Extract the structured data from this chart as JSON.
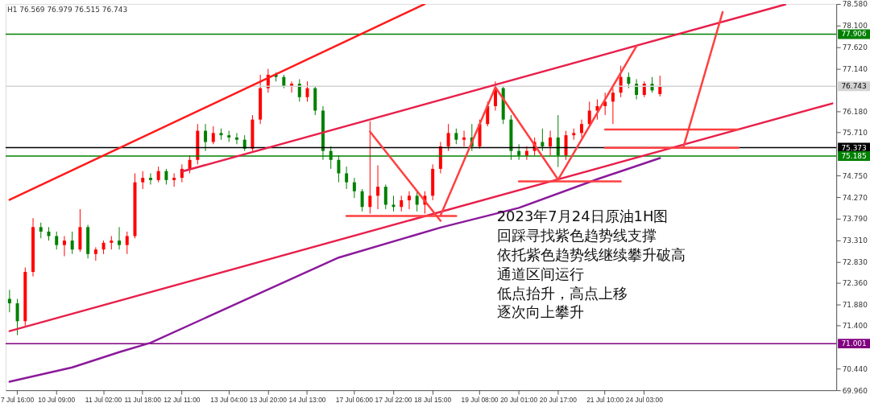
{
  "chart_data": {
    "type": "candlestick",
    "title": "H1  76.569 76.979 76.515 76.743",
    "categories": [
      null,
      "7 Jul 16:00",
      null,
      null,
      null,
      null,
      "10 Jul 09:00",
      null,
      null,
      null,
      null,
      null,
      "11 Jul 02:00",
      null,
      null,
      null,
      null,
      "11 Jul 18:00",
      null,
      null,
      null,
      null,
      "12 Jul 11:00",
      null,
      null,
      null,
      null,
      null,
      "13 Jul 04:00",
      null,
      null,
      null,
      null,
      "13 Jul 20:00",
      null,
      null,
      null,
      null,
      "14 Jul 13:00",
      null,
      null,
      null,
      null,
      null,
      "17 Jul 06:00",
      null,
      null,
      null,
      null,
      "17 Jul 22:00",
      null,
      null,
      null,
      null,
      "18 Jul 15:00",
      null,
      null,
      null,
      null,
      null,
      "19 Jul 08:00",
      null,
      null,
      null,
      null,
      "20 Jul 01:00",
      null,
      null,
      null,
      null,
      "20 Jul 17:00",
      null,
      null,
      null,
      null,
      null,
      "21 Jul 10:00",
      null,
      null,
      null,
      null,
      "24 Jul 03:00",
      null,
      null,
      null,
      null,
      null,
      null,
      null,
      null,
      null,
      null,
      null,
      null,
      null,
      null,
      null,
      null,
      null,
      null,
      null,
      null,
      null,
      null,
      null,
      null
    ],
    "ylim": [
      69.96,
      78.58
    ],
    "yticks": [
      {
        "value": 69.96,
        "label": "69.960"
      },
      {
        "value": 70.44,
        "label": "70.440"
      },
      {
        "value": 71.4,
        "label": "71.400"
      },
      {
        "value": 71.88,
        "label": "71.880"
      },
      {
        "value": 72.36,
        "label": "72.360"
      },
      {
        "value": 72.83,
        "label": "72.830"
      },
      {
        "value": 73.31,
        "label": "73.310"
      },
      {
        "value": 73.79,
        "label": "73.790"
      },
      {
        "value": 74.27,
        "label": "74.270"
      },
      {
        "value": 74.75,
        "label": "74.750"
      },
      {
        "value": 75.71,
        "label": "75.710"
      },
      {
        "value": 76.18,
        "label": "76.180"
      },
      {
        "value": 77.14,
        "label": "77.140"
      },
      {
        "value": 77.62,
        "label": "77.620"
      },
      {
        "value": 78.1,
        "label": "78.100"
      },
      {
        "value": 78.58,
        "label": "78.580"
      }
    ],
    "ohlc": [
      [
        72.0,
        72.2,
        71.7,
        71.9
      ],
      [
        71.9,
        72.0,
        71.19,
        71.5
      ],
      [
        71.5,
        72.7,
        71.4,
        72.6
      ],
      [
        72.6,
        73.8,
        72.5,
        73.6
      ],
      [
        73.6,
        73.7,
        73.35,
        73.5
      ],
      [
        73.5,
        73.6,
        73.3,
        73.4
      ],
      [
        73.4,
        73.5,
        73.1,
        73.2
      ],
      [
        73.2,
        73.4,
        72.95,
        73.3
      ],
      [
        73.3,
        73.5,
        73.0,
        73.1
      ],
      [
        73.1,
        74.0,
        73.05,
        73.6
      ],
      [
        73.6,
        73.65,
        72.9,
        73.0
      ],
      [
        73.0,
        73.15,
        72.85,
        73.1
      ],
      [
        73.1,
        73.3,
        73.0,
        73.25
      ],
      [
        73.25,
        73.4,
        73.1,
        73.3
      ],
      [
        73.3,
        73.6,
        73.1,
        73.2
      ],
      [
        73.2,
        73.5,
        73.0,
        73.4
      ],
      [
        73.4,
        74.8,
        73.35,
        74.6
      ],
      [
        74.6,
        74.85,
        74.45,
        74.7
      ],
      [
        74.7,
        74.8,
        74.55,
        74.65
      ],
      [
        74.65,
        74.95,
        74.6,
        74.85
      ],
      [
        74.85,
        74.9,
        74.55,
        74.65
      ],
      [
        74.65,
        74.8,
        74.5,
        74.7
      ],
      [
        74.7,
        75.0,
        74.6,
        74.9
      ],
      [
        74.9,
        75.2,
        74.8,
        75.1
      ],
      [
        75.1,
        75.9,
        75.0,
        75.75
      ],
      [
        75.75,
        75.9,
        75.3,
        75.5
      ],
      [
        75.5,
        75.85,
        75.45,
        75.7
      ],
      [
        75.7,
        75.8,
        75.55,
        75.65
      ],
      [
        75.65,
        75.75,
        75.5,
        75.6
      ],
      [
        75.6,
        75.7,
        75.45,
        75.55
      ],
      [
        75.55,
        75.65,
        75.3,
        75.35
      ],
      [
        75.35,
        76.1,
        75.3,
        76.0
      ],
      [
        76.0,
        77.0,
        75.9,
        76.7
      ],
      [
        76.7,
        77.13,
        76.6,
        77.0
      ],
      [
        77.0,
        77.05,
        76.85,
        76.95
      ],
      [
        76.95,
        77.0,
        76.7,
        76.75
      ],
      [
        76.75,
        76.85,
        76.6,
        76.8
      ],
      [
        76.8,
        76.9,
        76.4,
        76.5
      ],
      [
        76.5,
        76.85,
        76.4,
        76.7
      ],
      [
        76.7,
        76.75,
        76.1,
        76.2
      ],
      [
        76.2,
        76.3,
        75.1,
        75.3
      ],
      [
        75.3,
        75.4,
        74.9,
        75.1
      ],
      [
        75.1,
        75.2,
        74.6,
        74.8
      ],
      [
        74.8,
        74.95,
        74.45,
        74.6
      ],
      [
        74.6,
        74.7,
        74.25,
        74.4
      ],
      [
        74.4,
        74.45,
        73.95,
        74.05
      ],
      [
        74.05,
        75.96,
        73.9,
        74.3
      ],
      [
        74.3,
        74.98,
        74.0,
        74.5
      ],
      [
        74.5,
        74.55,
        74.0,
        74.1
      ],
      [
        74.1,
        74.3,
        73.95,
        74.05
      ],
      [
        74.05,
        74.3,
        73.95,
        74.2
      ],
      [
        74.2,
        74.4,
        74.0,
        74.3
      ],
      [
        74.3,
        74.4,
        73.95,
        74.1
      ],
      [
        74.1,
        74.4,
        73.9,
        74.3
      ],
      [
        74.3,
        75.0,
        74.2,
        74.9
      ],
      [
        74.9,
        75.5,
        74.8,
        75.4
      ],
      [
        75.4,
        75.9,
        75.3,
        75.7
      ],
      [
        75.7,
        75.8,
        75.45,
        75.55
      ],
      [
        75.55,
        75.75,
        75.4,
        75.6
      ],
      [
        75.6,
        75.9,
        75.3,
        75.4
      ],
      [
        75.4,
        76.0,
        75.35,
        75.9
      ],
      [
        75.9,
        76.4,
        75.85,
        76.3
      ],
      [
        76.3,
        76.85,
        76.2,
        76.7
      ],
      [
        76.7,
        76.75,
        75.9,
        76.0
      ],
      [
        76.0,
        76.1,
        75.1,
        75.3
      ],
      [
        75.3,
        75.45,
        75.1,
        75.2
      ],
      [
        75.2,
        75.4,
        75.1,
        75.3
      ],
      [
        75.3,
        75.6,
        75.2,
        75.5
      ],
      [
        75.5,
        75.8,
        75.3,
        75.4
      ],
      [
        75.4,
        75.75,
        75.2,
        75.6
      ],
      [
        75.6,
        76.1,
        74.94,
        75.2
      ],
      [
        75.2,
        75.75,
        75.1,
        75.65
      ],
      [
        75.65,
        75.8,
        75.55,
        75.7
      ],
      [
        75.7,
        76.0,
        75.6,
        75.9
      ],
      [
        75.9,
        76.4,
        75.85,
        76.2
      ],
      [
        76.2,
        76.45,
        76.0,
        76.3
      ],
      [
        76.3,
        76.6,
        76.1,
        76.4
      ],
      [
        76.4,
        76.7,
        75.9,
        76.6
      ],
      [
        76.6,
        77.2,
        76.5,
        76.95
      ],
      [
        76.95,
        77.05,
        76.7,
        76.8
      ],
      [
        76.8,
        76.9,
        76.45,
        76.55
      ],
      [
        76.55,
        76.85,
        76.5,
        76.8
      ],
      [
        76.8,
        76.95,
        76.6,
        76.65
      ],
      [
        76.569,
        76.979,
        76.515,
        76.743
      ],
      null,
      null,
      null,
      null,
      null,
      null,
      null,
      null,
      null,
      null,
      null,
      null,
      null,
      null,
      null,
      null,
      null,
      null,
      null,
      null,
      null,
      null
    ],
    "colors": [
      "#008000",
      "#008000",
      "#ff0000",
      "#ff0000",
      "#008000",
      "#008000",
      "#008000",
      "#ff0000",
      "#008000",
      "#ff0000",
      "#008000",
      "#ff0000",
      "#ff0000",
      "#ff0000",
      "#008000",
      "#ff0000",
      "#ff0000",
      "#ff0000",
      "#008000",
      "#ff0000",
      "#008000",
      "#ff0000",
      "#ff0000",
      "#ff0000",
      "#ff0000",
      "#008000",
      "#ff0000",
      "#008000",
      "#008000",
      "#008000",
      "#008000",
      "#ff0000",
      "#ff0000",
      "#ff0000",
      "#008000",
      "#008000",
      "#ff0000",
      "#008000",
      "#ff0000",
      "#008000",
      "#008000",
      "#008000",
      "#008000",
      "#008000",
      "#008000",
      "#008000",
      "#ff0000",
      "#ff0000",
      "#008000",
      "#008000",
      "#ff0000",
      "#ff0000",
      "#008000",
      "#ff0000",
      "#ff0000",
      "#ff0000",
      "#ff0000",
      "#008000",
      "#ff0000",
      "#008000",
      "#ff0000",
      "#ff0000",
      "#ff0000",
      "#008000",
      "#008000",
      "#008000",
      "#ff0000",
      "#ff0000",
      "#008000",
      "#ff0000",
      "#008000",
      "#ff0000",
      "#ff0000",
      "#ff0000",
      "#ff0000",
      "#ff0000",
      "#ff0000",
      "#ff0000",
      "#ff0000",
      "#008000",
      "#008000",
      "#ff0000",
      "#008000",
      "#ff0000",
      null,
      null,
      null,
      null,
      null,
      null,
      null,
      null,
      null,
      null,
      null,
      null,
      null,
      null,
      null,
      null,
      null,
      null,
      null,
      null,
      null,
      null
    ],
    "series": [
      {
        "type": "line",
        "color": "#ff1a1a",
        "values": [
          74.21,
          null,
          null,
          null,
          null,
          null,
          null,
          null,
          null,
          null,
          null,
          null,
          null,
          null,
          null,
          null,
          null,
          null,
          null,
          null,
          null,
          null,
          null,
          null,
          null,
          null,
          null,
          null,
          null,
          null,
          null,
          null,
          null,
          null,
          null,
          null,
          null,
          null,
          null,
          null,
          null,
          null,
          null,
          null,
          null,
          null,
          null,
          null,
          null,
          null,
          null,
          null,
          null,
          78.58,
          null,
          null,
          null,
          null,
          null,
          null,
          null,
          null,
          null,
          null,
          null,
          null,
          null,
          null,
          null,
          null,
          null,
          null,
          null,
          null,
          null,
          null,
          null,
          null,
          null,
          null,
          null,
          null,
          null,
          null,
          null,
          null,
          null,
          null,
          null,
          null,
          null,
          null,
          null,
          null,
          null,
          null,
          null,
          null,
          null,
          null,
          null,
          null,
          null,
          null,
          null,
          null
        ]
      },
      {
        "type": "line",
        "color": "#e8204a",
        "values": [
          null,
          null,
          null,
          null,
          null,
          null,
          null,
          null,
          null,
          null,
          null,
          null,
          null,
          null,
          null,
          null,
          null,
          null,
          null,
          null,
          null,
          null,
          74.84,
          null,
          null,
          null,
          null,
          null,
          null,
          null,
          null,
          null,
          null,
          null,
          null,
          null,
          null,
          null,
          null,
          null,
          null,
          null,
          null,
          null,
          null,
          null,
          null,
          null,
          null,
          null,
          null,
          null,
          null,
          null,
          null,
          null,
          null,
          null,
          null,
          null,
          null,
          null,
          null,
          null,
          null,
          null,
          null,
          null,
          null,
          null,
          null,
          null,
          null,
          null,
          null,
          null,
          null,
          null,
          null,
          null,
          null,
          null,
          null,
          null,
          null,
          null,
          null,
          null,
          null,
          null,
          null,
          null,
          null,
          null,
          null,
          null,
          null,
          null,
          null,
          78.57,
          null,
          null,
          null,
          null,
          null,
          null
        ]
      },
      {
        "type": "line",
        "color": "#e8204a",
        "values": [
          71.28,
          null,
          null,
          null,
          null,
          null,
          null,
          null,
          null,
          null,
          null,
          null,
          null,
          null,
          null,
          null,
          null,
          null,
          null,
          null,
          null,
          null,
          null,
          null,
          null,
          null,
          null,
          null,
          null,
          null,
          null,
          null,
          null,
          null,
          null,
          null,
          null,
          null,
          null,
          null,
          null,
          null,
          null,
          null,
          null,
          null,
          null,
          null,
          null,
          null,
          null,
          null,
          null,
          null,
          null,
          null,
          null,
          null,
          null,
          null,
          null,
          null,
          null,
          null,
          null,
          null,
          null,
          null,
          null,
          null,
          null,
          null,
          null,
          null,
          null,
          null,
          null,
          null,
          null,
          null,
          null,
          null,
          null,
          null,
          null,
          null,
          null,
          null,
          null,
          null,
          null,
          null,
          null,
          null,
          null,
          null,
          null,
          null,
          null,
          null,
          null,
          null,
          null,
          null,
          null,
          76.36
        ]
      },
      {
        "type": "line",
        "color": "#8b1a9b",
        "values": [
          70.15,
          null,
          null,
          null,
          null,
          null,
          null,
          null,
          70.47,
          null,
          null,
          null,
          null,
          null,
          70.81,
          null,
          null,
          null,
          71.02,
          null,
          null,
          null,
          null,
          null,
          null,
          null,
          null,
          null,
          null,
          null,
          null,
          72.05,
          null,
          null,
          null,
          null,
          null,
          null,
          null,
          null,
          null,
          null,
          72.92,
          null,
          null,
          null,
          null,
          null,
          null,
          null,
          null,
          null,
          null,
          null,
          null,
          73.59,
          null,
          null,
          null,
          null,
          null,
          null,
          null,
          null,
          null,
          74.03,
          null,
          null,
          null,
          null,
          null,
          null,
          null,
          null,
          null,
          74.67,
          null,
          null,
          null,
          null,
          null,
          null,
          null,
          75.14,
          null,
          null,
          null,
          null,
          null,
          null,
          null,
          null,
          null,
          null,
          null,
          null,
          null,
          null,
          null,
          null,
          null,
          null,
          null,
          null,
          null,
          null
        ]
      },
      {
        "type": "line",
        "color": "#ff4040",
        "values": [
          null,
          null,
          null,
          null,
          null,
          null,
          null,
          null,
          null,
          null,
          null,
          null,
          null,
          null,
          null,
          null,
          null,
          null,
          null,
          null,
          null,
          null,
          null,
          null,
          null,
          null,
          null,
          null,
          null,
          null,
          null,
          null,
          null,
          null,
          null,
          null,
          null,
          null,
          null,
          null,
          null,
          null,
          null,
          null,
          null,
          null,
          75.73,
          null,
          null,
          null,
          null,
          null,
          null,
          null,
          null,
          73.74,
          null,
          null,
          null,
          null,
          null,
          null,
          null,
          null,
          null,
          null,
          null,
          null,
          null,
          null,
          null,
          null,
          null,
          null,
          null,
          null,
          null,
          null,
          null,
          null,
          null,
          null,
          null,
          null,
          null,
          null,
          null,
          null,
          null,
          null,
          null,
          null,
          null,
          null,
          null,
          null,
          null,
          null,
          null,
          null,
          null,
          null,
          null,
          null,
          null,
          null
        ]
      },
      {
        "type": "line",
        "color": "#ff4040",
        "values": [
          null,
          null,
          null,
          null,
          null,
          null,
          null,
          null,
          null,
          null,
          null,
          null,
          null,
          null,
          null,
          null,
          null,
          null,
          null,
          null,
          null,
          null,
          null,
          null,
          null,
          null,
          null,
          null,
          null,
          null,
          null,
          null,
          null,
          null,
          null,
          null,
          null,
          null,
          null,
          null,
          null,
          null,
          null,
          null,
          null,
          null,
          null,
          null,
          null,
          null,
          null,
          null,
          null,
          null,
          null,
          73.86,
          null,
          null,
          null,
          null,
          null,
          null,
          76.72,
          null,
          null,
          null,
          null,
          null,
          null,
          null,
          null,
          null,
          null,
          null,
          null,
          null,
          null,
          null,
          null,
          null,
          null,
          null,
          null,
          null,
          null,
          null,
          null,
          null,
          null,
          null,
          null,
          null,
          null,
          null,
          null,
          null,
          null,
          null,
          null,
          null,
          null,
          null,
          null,
          null,
          null,
          null
        ]
      },
      {
        "type": "line",
        "color": "#ff4040",
        "values": [
          null,
          null,
          null,
          null,
          null,
          null,
          null,
          null,
          null,
          null,
          null,
          null,
          null,
          null,
          null,
          null,
          null,
          null,
          null,
          null,
          null,
          null,
          null,
          null,
          null,
          null,
          null,
          null,
          null,
          null,
          null,
          null,
          null,
          null,
          null,
          null,
          null,
          null,
          null,
          null,
          null,
          null,
          null,
          null,
          null,
          null,
          null,
          null,
          null,
          null,
          null,
          null,
          null,
          null,
          null,
          null,
          null,
          null,
          null,
          null,
          null,
          null,
          76.72,
          null,
          null,
          null,
          null,
          null,
          null,
          null,
          74.66,
          null,
          null,
          null,
          null,
          null,
          null,
          null,
          null,
          null,
          null,
          null,
          null,
          null,
          null,
          null,
          null,
          null,
          null,
          null,
          null,
          null,
          null,
          null,
          null,
          null,
          null,
          null,
          null,
          null,
          null,
          null,
          null,
          null,
          null,
          null
        ]
      },
      {
        "type": "line",
        "color": "#ff4040",
        "values": [
          null,
          null,
          null,
          null,
          null,
          null,
          null,
          null,
          null,
          null,
          null,
          null,
          null,
          null,
          null,
          null,
          null,
          null,
          null,
          null,
          null,
          null,
          null,
          null,
          null,
          null,
          null,
          null,
          null,
          null,
          null,
          null,
          null,
          null,
          null,
          null,
          null,
          null,
          null,
          null,
          null,
          null,
          null,
          null,
          null,
          null,
          null,
          null,
          null,
          null,
          null,
          null,
          null,
          null,
          null,
          null,
          null,
          null,
          null,
          null,
          null,
          null,
          null,
          null,
          null,
          null,
          null,
          null,
          null,
          null,
          74.66,
          null,
          null,
          null,
          null,
          null,
          null,
          null,
          null,
          null,
          77.64,
          null,
          null,
          null,
          null,
          null,
          null,
          null,
          null,
          null,
          null,
          null,
          null,
          null,
          null,
          null,
          null,
          null,
          null,
          null,
          null,
          null,
          null,
          null,
          null,
          null
        ]
      },
      {
        "type": "line",
        "color": "#ff4040",
        "values": [
          null,
          null,
          null,
          null,
          null,
          null,
          null,
          null,
          null,
          null,
          null,
          null,
          null,
          null,
          null,
          null,
          null,
          null,
          null,
          null,
          null,
          null,
          null,
          null,
          null,
          null,
          null,
          null,
          null,
          null,
          null,
          null,
          null,
          null,
          null,
          null,
          null,
          null,
          null,
          null,
          null,
          null,
          null,
          null,
          null,
          null,
          null,
          null,
          null,
          null,
          null,
          null,
          null,
          null,
          null,
          null,
          null,
          null,
          null,
          null,
          null,
          null,
          null,
          null,
          null,
          null,
          null,
          null,
          null,
          null,
          null,
          null,
          null,
          null,
          null,
          null,
          null,
          null,
          null,
          null,
          null,
          null,
          null,
          null,
          null,
          null,
          75.39,
          null,
          null,
          null,
          null,
          78.4,
          null,
          null,
          null,
          null,
          null,
          null,
          null,
          null,
          null,
          null,
          null,
          null,
          null,
          null
        ]
      },
      {
        "type": "line",
        "color": "#ff4040",
        "values": [
          null,
          null,
          null,
          null,
          null,
          null,
          null,
          null,
          null,
          null,
          null,
          null,
          null,
          null,
          null,
          null,
          null,
          null,
          null,
          null,
          null,
          null,
          null,
          null,
          null,
          null,
          null,
          null,
          null,
          null,
          null,
          null,
          null,
          null,
          null,
          null,
          null,
          null,
          null,
          null,
          null,
          null,
          null,
          73.85,
          null,
          null,
          null,
          null,
          null,
          null,
          null,
          null,
          null,
          null,
          null,
          null,
          null,
          73.85,
          null,
          null,
          null,
          null,
          null,
          null,
          null,
          null,
          null,
          null,
          null,
          null,
          null,
          null,
          null,
          null,
          null,
          null,
          null,
          null,
          null,
          null,
          null,
          null,
          null,
          null,
          null,
          null,
          null,
          null,
          null,
          null,
          null,
          null,
          null,
          null,
          null,
          null,
          null,
          null,
          null,
          null,
          null,
          null,
          null,
          null,
          null,
          null
        ]
      },
      {
        "type": "line",
        "color": "#ff4040",
        "values": [
          null,
          null,
          null,
          null,
          null,
          null,
          null,
          null,
          null,
          null,
          null,
          null,
          null,
          null,
          null,
          null,
          null,
          null,
          null,
          null,
          null,
          null,
          null,
          null,
          null,
          null,
          null,
          null,
          null,
          null,
          null,
          null,
          null,
          null,
          null,
          null,
          null,
          null,
          null,
          null,
          null,
          null,
          null,
          null,
          null,
          null,
          null,
          null,
          null,
          null,
          null,
          null,
          null,
          null,
          null,
          null,
          null,
          null,
          null,
          null,
          null,
          null,
          null,
          null,
          null,
          74.62,
          null,
          null,
          null,
          null,
          null,
          null,
          null,
          null,
          null,
          null,
          null,
          null,
          74.62,
          null,
          null,
          null,
          null,
          null,
          null,
          null,
          null,
          null,
          null,
          null,
          null,
          null,
          null,
          null,
          null,
          null,
          null,
          null,
          null,
          null,
          null,
          null,
          null,
          null,
          null,
          null
        ]
      },
      {
        "type": "line",
        "color": "#ff4040",
        "values": [
          null,
          null,
          null,
          null,
          null,
          null,
          null,
          null,
          null,
          null,
          null,
          null,
          null,
          null,
          null,
          null,
          null,
          null,
          null,
          null,
          null,
          null,
          null,
          null,
          null,
          null,
          null,
          null,
          null,
          null,
          null,
          null,
          null,
          null,
          null,
          null,
          null,
          null,
          null,
          null,
          null,
          null,
          null,
          null,
          null,
          null,
          null,
          null,
          null,
          null,
          null,
          null,
          null,
          null,
          null,
          null,
          null,
          null,
          null,
          null,
          null,
          null,
          null,
          null,
          null,
          null,
          null,
          null,
          null,
          null,
          null,
          null,
          null,
          null,
          null,
          null,
          75.78,
          null,
          null,
          null,
          null,
          null,
          null,
          null,
          null,
          null,
          null,
          null,
          null,
          null,
          null,
          null,
          null,
          75.78,
          null,
          null,
          null,
          null,
          null,
          null,
          null,
          null,
          null,
          null,
          null,
          null
        ]
      },
      {
        "type": "line",
        "color": "#ff4040",
        "values": [
          null,
          null,
          null,
          null,
          null,
          null,
          null,
          null,
          null,
          null,
          null,
          null,
          null,
          null,
          null,
          null,
          null,
          null,
          null,
          null,
          null,
          null,
          null,
          null,
          null,
          null,
          null,
          null,
          null,
          null,
          null,
          null,
          null,
          null,
          null,
          null,
          null,
          null,
          null,
          null,
          null,
          null,
          null,
          null,
          null,
          null,
          null,
          null,
          null,
          null,
          null,
          null,
          null,
          null,
          null,
          null,
          null,
          null,
          null,
          null,
          null,
          null,
          null,
          null,
          null,
          null,
          null,
          null,
          null,
          null,
          null,
          null,
          null,
          null,
          null,
          null,
          75.37,
          null,
          null,
          null,
          null,
          null,
          null,
          null,
          null,
          null,
          null,
          null,
          null,
          null,
          null,
          null,
          null,
          75.37,
          null,
          null,
          null,
          null,
          null,
          null,
          null,
          null,
          null,
          null,
          null,
          null
        ]
      }
    ],
    "ref_lines": [
      {
        "axis": "y",
        "value": 77.906,
        "label": "77.906",
        "color": "#008000"
      },
      {
        "axis": "y",
        "value": 76.743,
        "label": "76.743",
        "color": "#d3d3d3"
      },
      {
        "axis": "y",
        "value": 75.373,
        "label": "75.373",
        "color": "#000000"
      },
      {
        "axis": "y",
        "value": 75.185,
        "label": "75.185",
        "color": "#008000"
      },
      {
        "axis": "y",
        "value": 71.001,
        "label": "71.001",
        "color": "#800080"
      }
    ],
    "annotations": [
      "2023年7月24日原油1H图",
      "回踩寻找紫色趋势线支撑",
      "依托紫色趋势线继续攀升破高",
      "通道区间运行",
      "低点抬升，高点上移",
      "逐次向上攀升"
    ],
    "grid": false,
    "line_style": "solid"
  }
}
